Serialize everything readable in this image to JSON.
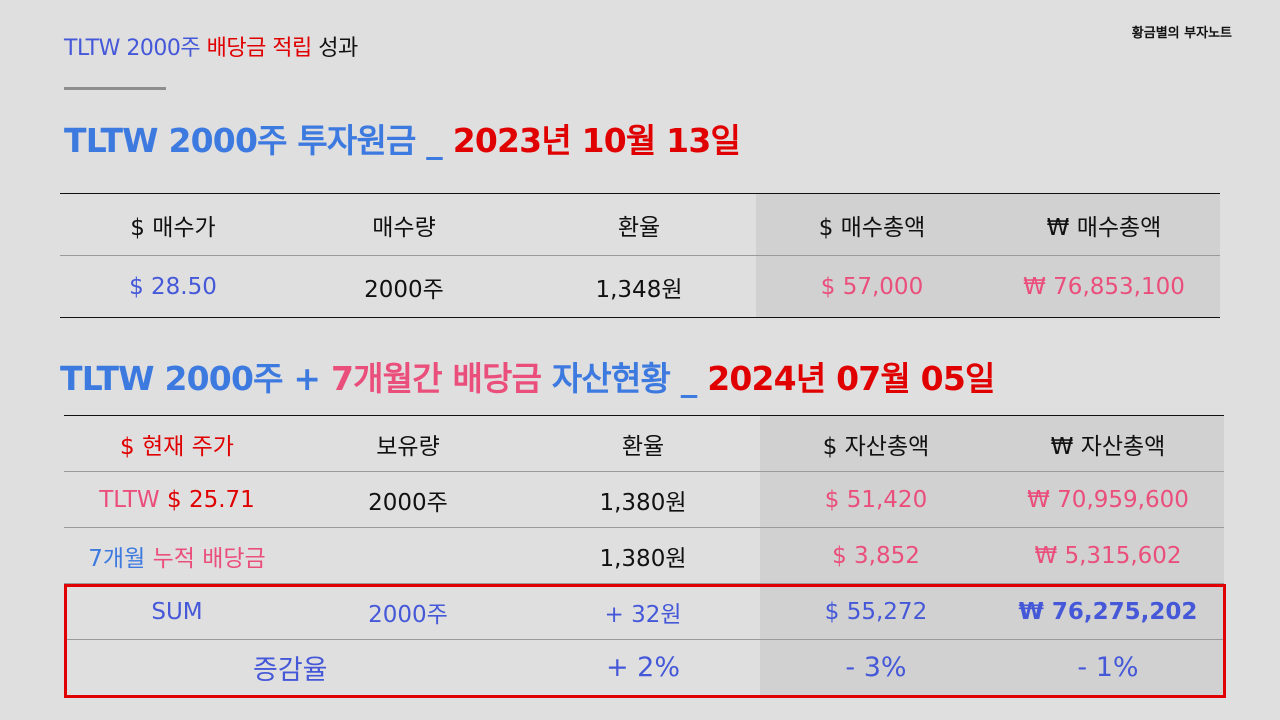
{
  "header": {
    "title_part1": "TLTW 2000주",
    "title_part2": "배당금 적립",
    "title_part3": "성과",
    "brand": "황금별의 부자노트"
  },
  "section1": {
    "heading_part1": "TLTW 2000주 투자원금 _",
    "heading_part2": "2023년 10월 13일",
    "headers": [
      "$ 매수가",
      "매수량",
      "환율",
      "$ 매수총액",
      "₩ 매수총액"
    ],
    "row": {
      "price": "$ 28.50",
      "qty": "2000주",
      "rate": "1,348원",
      "usd_total": "$ 57,000",
      "krw_total": "₩ 76,853,100"
    }
  },
  "section2": {
    "heading_part1": "TLTW 2000주 +",
    "heading_part2": "7개월간 배당금",
    "heading_part3": "자산현황 _",
    "heading_part4": "2024년 07월 05일",
    "headers": [
      "$ 현재 주가",
      "보유량",
      "환율",
      "$ 자산총액",
      "₩ 자산총액"
    ],
    "row_stock": {
      "name": "TLTW",
      "price": "$ 25.71",
      "qty": "2000주",
      "rate": "1,380원",
      "usd_total": "$ 51,420",
      "krw_total": "₩ 70,959,600"
    },
    "row_dividend": {
      "label_part1": "7개월",
      "label_part2": "누적 배당금",
      "rate": "1,380원",
      "usd_total": "$ 3,852",
      "krw_total": "₩ 5,315,602"
    },
    "row_sum": {
      "label": "SUM",
      "qty": "2000주",
      "rate": "+ 32원",
      "usd_total": "$ 55,272",
      "krw_total": "₩ 76,275,202"
    },
    "row_change": {
      "label": "증감율",
      "rate": "+ 2%",
      "usd": "- 3%",
      "krw": "- 1%"
    }
  },
  "colors": {
    "background": "#e0dfe0",
    "blue": "#4458d8",
    "red": "#e00000",
    "pink": "#ea4f7c",
    "shade": "#d2d1d2",
    "highlight_border": "#e00000"
  }
}
